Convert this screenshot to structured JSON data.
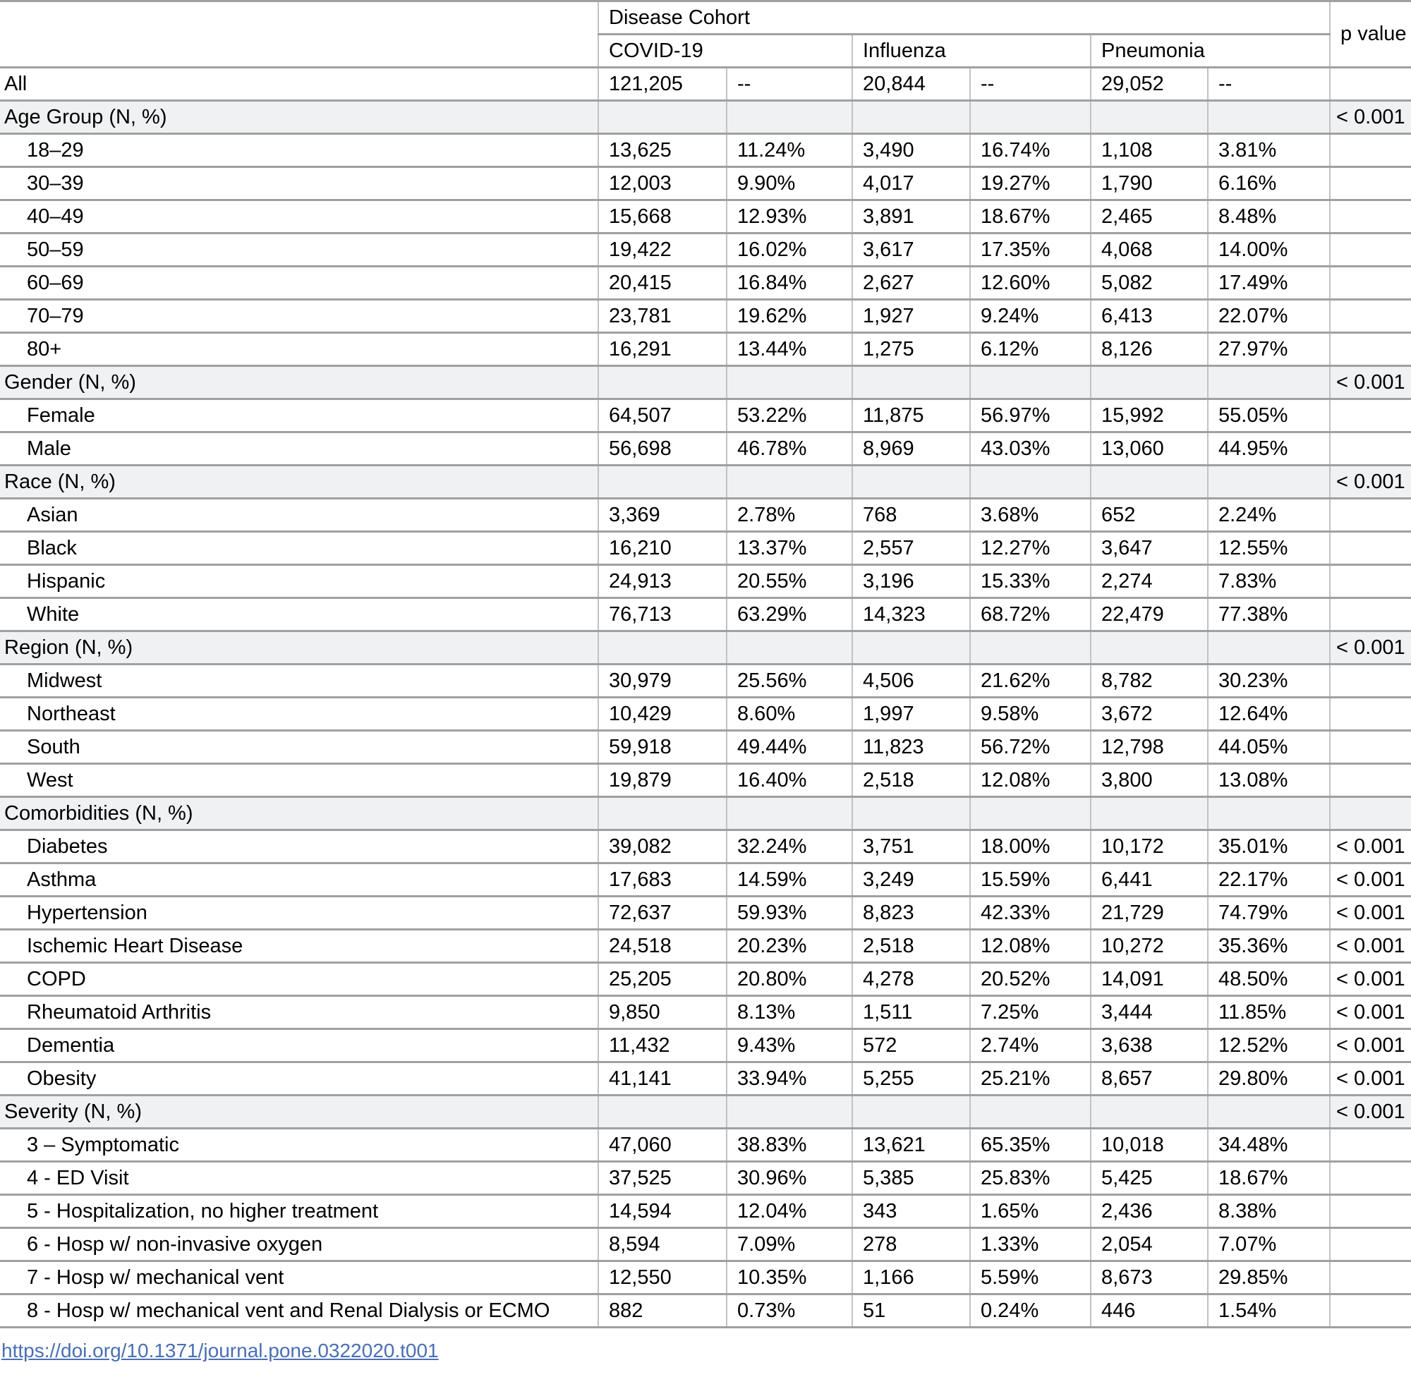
{
  "colors": {
    "link_blue": "#4a6fb4",
    "section_row_bg": "#f0f1f2"
  },
  "table": {
    "header": {
      "disease_cohort_label": "Disease Cohort",
      "p_value_label": "p value",
      "cohorts": [
        "COVID-19",
        "Influenza",
        "Pneumonia"
      ]
    },
    "rows": [
      {
        "label": "All",
        "section": false,
        "indent": false,
        "cells": [
          "121,205",
          "--",
          "20,844",
          "--",
          "29,052",
          "--"
        ],
        "p": ""
      },
      {
        "label": "Age Group (N, %)",
        "section": true,
        "indent": false,
        "cells": [
          "",
          "",
          "",
          "",
          "",
          ""
        ],
        "p": "< 0.001"
      },
      {
        "label": "18–29",
        "section": false,
        "indent": true,
        "cells": [
          "13,625",
          "11.24%",
          "3,490",
          "16.74%",
          "1,108",
          "3.81%"
        ],
        "p": ""
      },
      {
        "label": "30–39",
        "section": false,
        "indent": true,
        "cells": [
          "12,003",
          "9.90%",
          "4,017",
          "19.27%",
          "1,790",
          "6.16%"
        ],
        "p": ""
      },
      {
        "label": "40–49",
        "section": false,
        "indent": true,
        "cells": [
          "15,668",
          "12.93%",
          "3,891",
          "18.67%",
          "2,465",
          "8.48%"
        ],
        "p": ""
      },
      {
        "label": "50–59",
        "section": false,
        "indent": true,
        "cells": [
          "19,422",
          "16.02%",
          "3,617",
          "17.35%",
          "4,068",
          "14.00%"
        ],
        "p": ""
      },
      {
        "label": "60–69",
        "section": false,
        "indent": true,
        "cells": [
          "20,415",
          "16.84%",
          "2,627",
          "12.60%",
          "5,082",
          "17.49%"
        ],
        "p": ""
      },
      {
        "label": "70–79",
        "section": false,
        "indent": true,
        "cells": [
          "23,781",
          "19.62%",
          "1,927",
          "9.24%",
          "6,413",
          "22.07%"
        ],
        "p": ""
      },
      {
        "label": "80+",
        "section": false,
        "indent": true,
        "cells": [
          "16,291",
          "13.44%",
          "1,275",
          "6.12%",
          "8,126",
          "27.97%"
        ],
        "p": ""
      },
      {
        "label": "Gender (N, %)",
        "section": true,
        "indent": false,
        "cells": [
          "",
          "",
          "",
          "",
          "",
          ""
        ],
        "p": "< 0.001"
      },
      {
        "label": "Female",
        "section": false,
        "indent": true,
        "cells": [
          "64,507",
          "53.22%",
          "11,875",
          "56.97%",
          "15,992",
          "55.05%"
        ],
        "p": ""
      },
      {
        "label": "Male",
        "section": false,
        "indent": true,
        "cells": [
          "56,698",
          "46.78%",
          "8,969",
          "43.03%",
          "13,060",
          "44.95%"
        ],
        "p": ""
      },
      {
        "label": "Race (N, %)",
        "section": true,
        "indent": false,
        "cells": [
          "",
          "",
          "",
          "",
          "",
          ""
        ],
        "p": "< 0.001"
      },
      {
        "label": "Asian",
        "section": false,
        "indent": true,
        "cells": [
          "3,369",
          "2.78%",
          "768",
          "3.68%",
          "652",
          "2.24%"
        ],
        "p": ""
      },
      {
        "label": "Black",
        "section": false,
        "indent": true,
        "cells": [
          "16,210",
          "13.37%",
          "2,557",
          "12.27%",
          "3,647",
          "12.55%"
        ],
        "p": ""
      },
      {
        "label": "Hispanic",
        "section": false,
        "indent": true,
        "cells": [
          "24,913",
          "20.55%",
          "3,196",
          "15.33%",
          "2,274",
          "7.83%"
        ],
        "p": ""
      },
      {
        "label": "White",
        "section": false,
        "indent": true,
        "cells": [
          "76,713",
          "63.29%",
          "14,323",
          "68.72%",
          "22,479",
          "77.38%"
        ],
        "p": ""
      },
      {
        "label": "Region (N, %)",
        "section": true,
        "indent": false,
        "cells": [
          "",
          "",
          "",
          "",
          "",
          ""
        ],
        "p": "< 0.001"
      },
      {
        "label": "Midwest",
        "section": false,
        "indent": true,
        "cells": [
          "30,979",
          "25.56%",
          "4,506",
          "21.62%",
          "8,782",
          "30.23%"
        ],
        "p": ""
      },
      {
        "label": "Northeast",
        "section": false,
        "indent": true,
        "cells": [
          "10,429",
          "8.60%",
          "1,997",
          "9.58%",
          "3,672",
          "12.64%"
        ],
        "p": ""
      },
      {
        "label": "South",
        "section": false,
        "indent": true,
        "cells": [
          "59,918",
          "49.44%",
          "11,823",
          "56.72%",
          "12,798",
          "44.05%"
        ],
        "p": ""
      },
      {
        "label": "West",
        "section": false,
        "indent": true,
        "cells": [
          "19,879",
          "16.40%",
          "2,518",
          "12.08%",
          "3,800",
          "13.08%"
        ],
        "p": ""
      },
      {
        "label": "Comorbidities (N, %)",
        "section": true,
        "indent": false,
        "cells": [
          "",
          "",
          "",
          "",
          "",
          ""
        ],
        "p": ""
      },
      {
        "label": "Diabetes",
        "section": false,
        "indent": true,
        "cells": [
          "39,082",
          "32.24%",
          "3,751",
          "18.00%",
          "10,172",
          "35.01%"
        ],
        "p": "< 0.001"
      },
      {
        "label": "Asthma",
        "section": false,
        "indent": true,
        "cells": [
          "17,683",
          "14.59%",
          "3,249",
          "15.59%",
          "6,441",
          "22.17%"
        ],
        "p": "< 0.001"
      },
      {
        "label": "Hypertension",
        "section": false,
        "indent": true,
        "cells": [
          "72,637",
          "59.93%",
          "8,823",
          "42.33%",
          "21,729",
          "74.79%"
        ],
        "p": "< 0.001"
      },
      {
        "label": "Ischemic Heart Disease",
        "section": false,
        "indent": true,
        "cells": [
          "24,518",
          "20.23%",
          "2,518",
          "12.08%",
          "10,272",
          "35.36%"
        ],
        "p": "< 0.001"
      },
      {
        "label": "COPD",
        "section": false,
        "indent": true,
        "cells": [
          "25,205",
          "20.80%",
          "4,278",
          "20.52%",
          "14,091",
          "48.50%"
        ],
        "p": "< 0.001"
      },
      {
        "label": "Rheumatoid Arthritis",
        "section": false,
        "indent": true,
        "cells": [
          "9,850",
          "8.13%",
          "1,511",
          "7.25%",
          "3,444",
          "11.85%"
        ],
        "p": "< 0.001"
      },
      {
        "label": "Dementia",
        "section": false,
        "indent": true,
        "cells": [
          "11,432",
          "9.43%",
          "572",
          "2.74%",
          "3,638",
          "12.52%"
        ],
        "p": "< 0.001"
      },
      {
        "label": "Obesity",
        "section": false,
        "indent": true,
        "cells": [
          "41,141",
          "33.94%",
          "5,255",
          "25.21%",
          "8,657",
          "29.80%"
        ],
        "p": "< 0.001"
      },
      {
        "label": "Severity (N, %)",
        "section": true,
        "indent": false,
        "cells": [
          "",
          "",
          "",
          "",
          "",
          ""
        ],
        "p": "< 0.001"
      },
      {
        "label": "3 – Symptomatic",
        "section": false,
        "indent": true,
        "cells": [
          "47,060",
          "38.83%",
          "13,621",
          "65.35%",
          "10,018",
          "34.48%"
        ],
        "p": ""
      },
      {
        "label": "4 - ED Visit",
        "section": false,
        "indent": true,
        "cells": [
          "37,525",
          "30.96%",
          "5,385",
          "25.83%",
          "5,425",
          "18.67%"
        ],
        "p": ""
      },
      {
        "label": "5 - Hospitalization, no higher treatment",
        "section": false,
        "indent": true,
        "cells": [
          "14,594",
          "12.04%",
          "343",
          "1.65%",
          "2,436",
          "8.38%"
        ],
        "p": ""
      },
      {
        "label": "6 - Hosp w/ non-invasive oxygen",
        "section": false,
        "indent": true,
        "cells": [
          "8,594",
          "7.09%",
          "278",
          "1.33%",
          "2,054",
          "7.07%"
        ],
        "p": ""
      },
      {
        "label": "7 - Hosp w/ mechanical vent",
        "section": false,
        "indent": true,
        "cells": [
          "12,550",
          "10.35%",
          "1,166",
          "5.59%",
          "8,673",
          "29.85%"
        ],
        "p": ""
      },
      {
        "label": "8 - Hosp w/ mechanical vent and Renal Dialysis or ECMO",
        "section": false,
        "indent": true,
        "cells": [
          "882",
          "0.73%",
          "51",
          "0.24%",
          "446",
          "1.54%"
        ],
        "p": ""
      }
    ]
  },
  "footer": {
    "doi_link": "https://doi.org/10.1371/journal.pone.0322020.t001"
  }
}
